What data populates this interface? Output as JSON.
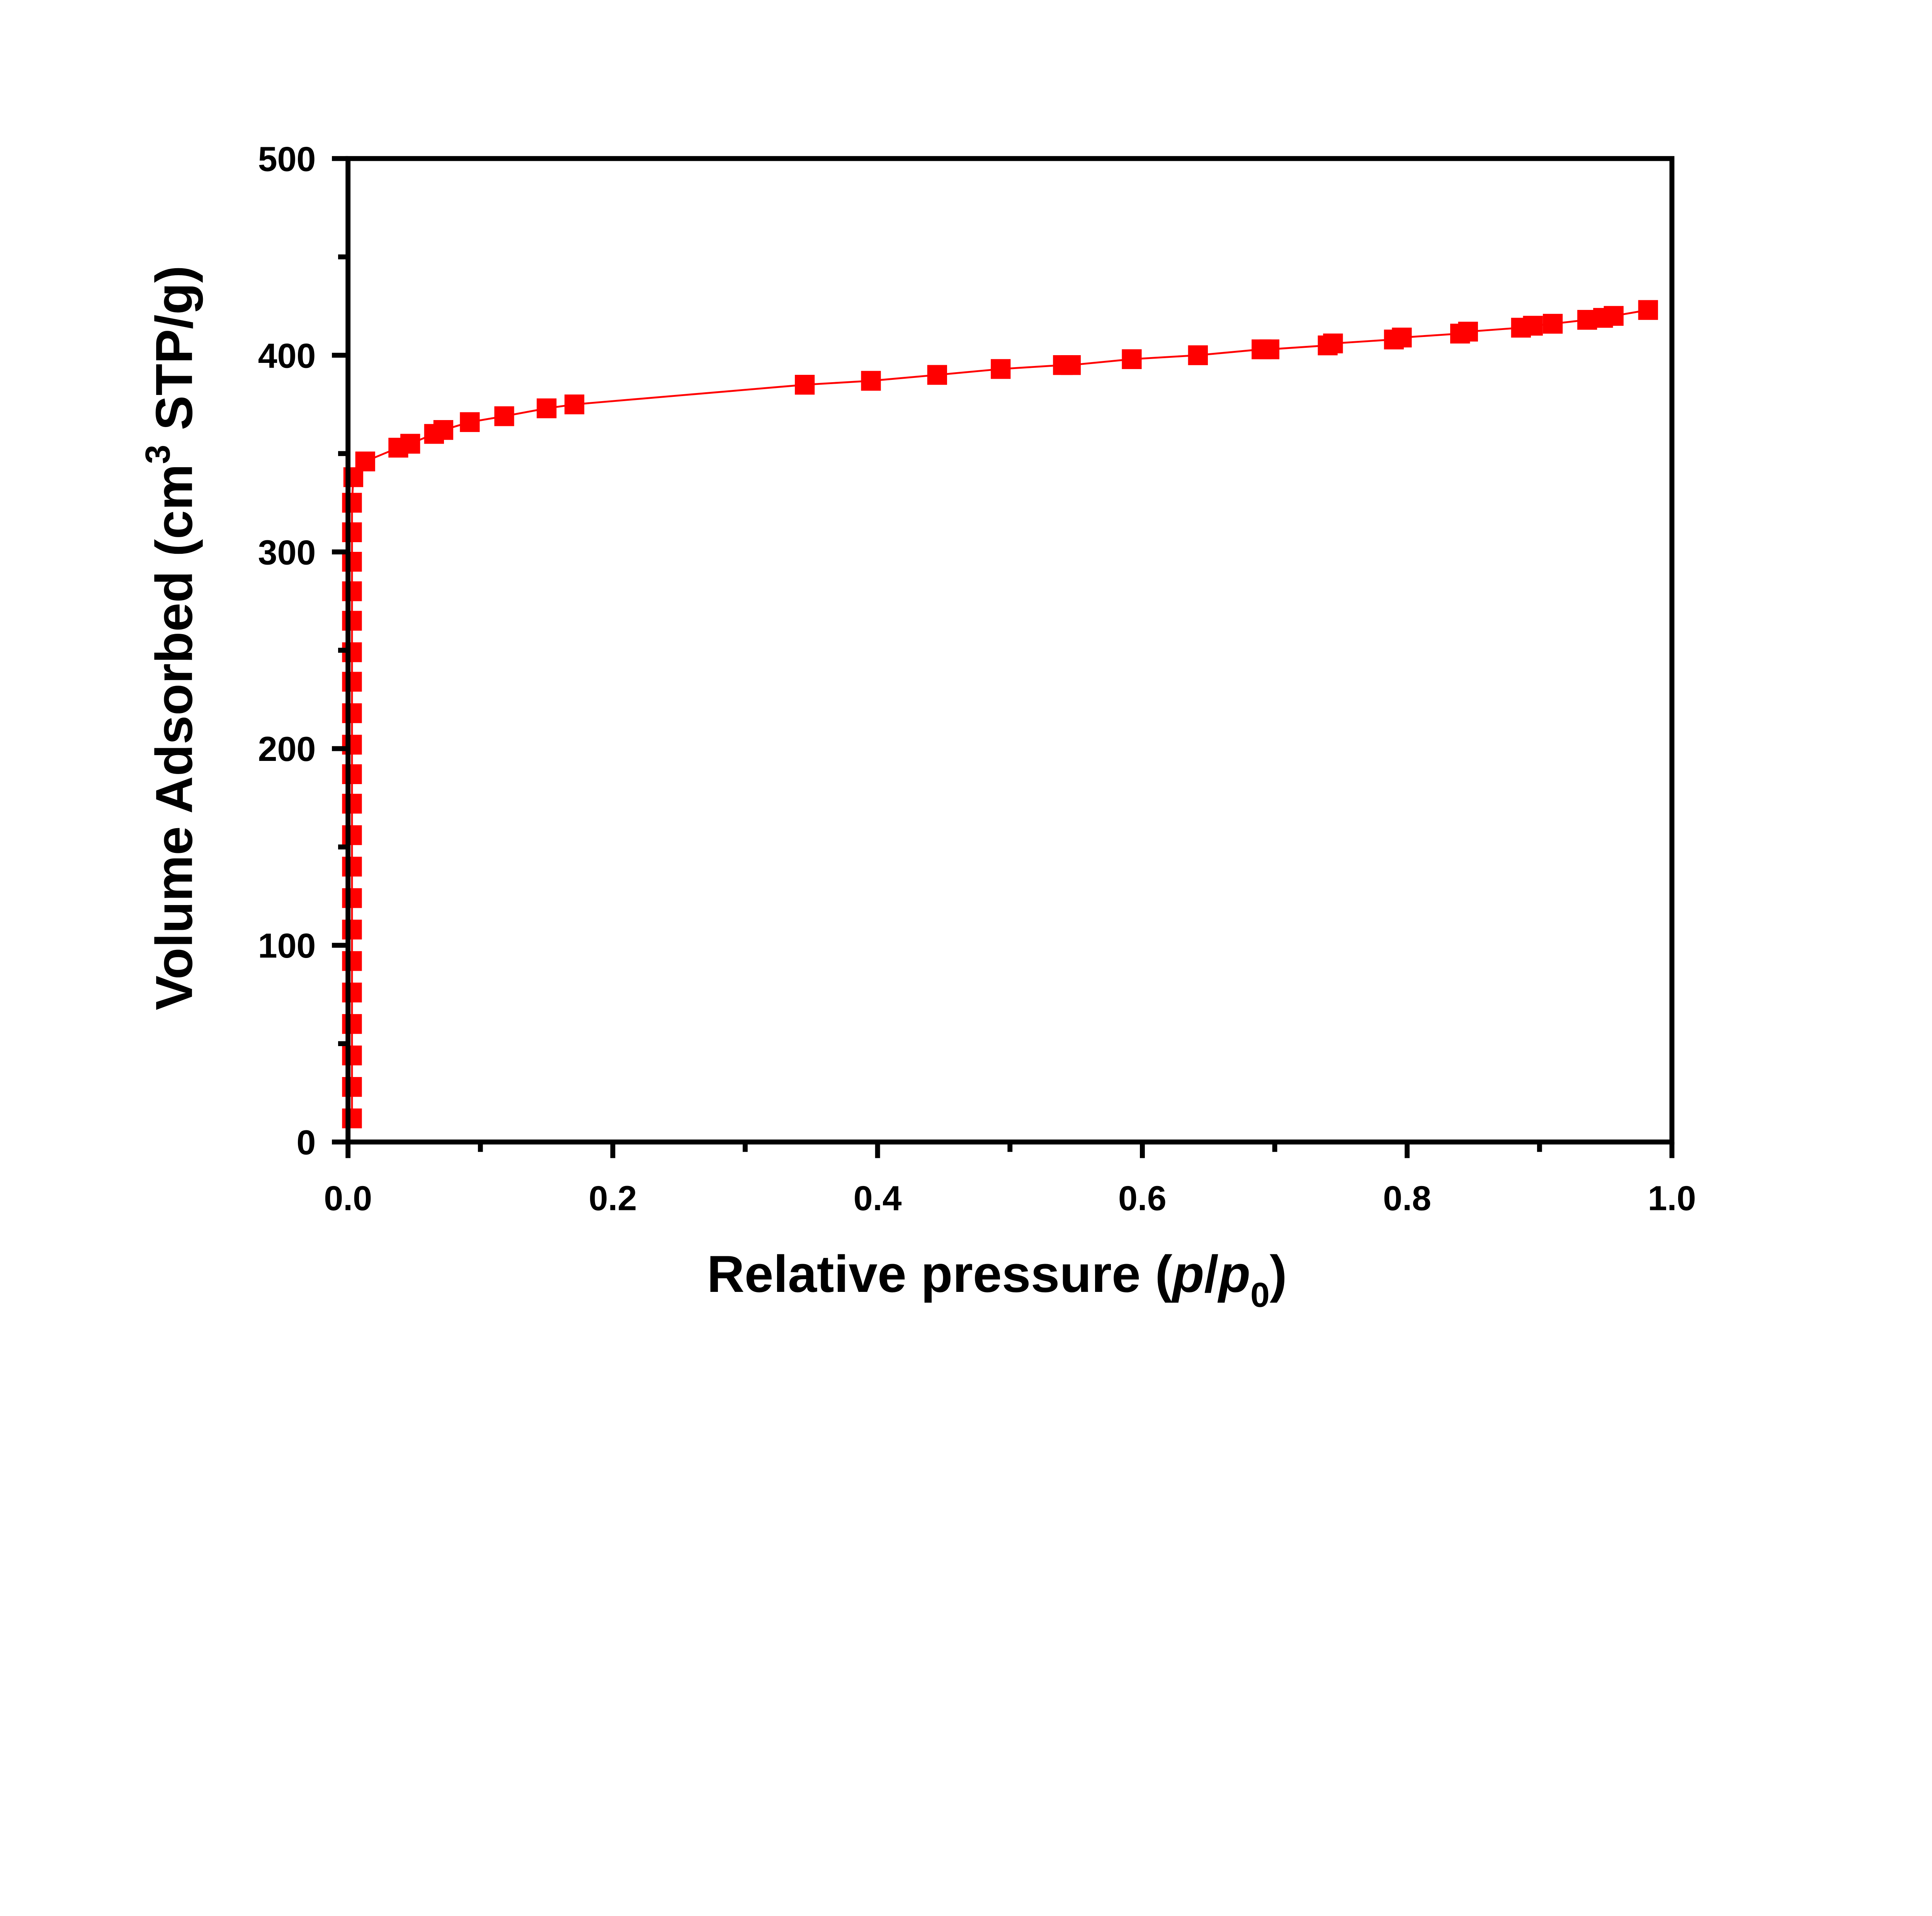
{
  "chart_data": {
    "type": "scatter",
    "title": "",
    "xlabel": "Relative pressure (p/p0)",
    "xlabel_parts": {
      "prefix": "Relative pressure (",
      "p": "p",
      "slash": "/",
      "p0": "p",
      "sub": "0",
      "suffix": ")"
    },
    "ylabel": "Volume Adsorbed (cm3 STP/g)",
    "ylabel_parts": {
      "prefix": "Volume Adsorbed (cm",
      "sup": "3",
      "suffix": " STP/g)"
    },
    "xlim": [
      0,
      1.0
    ],
    "ylim": [
      0,
      500
    ],
    "xticks": [
      "0.0",
      "0.2",
      "0.4",
      "0.6",
      "0.8",
      "1.0"
    ],
    "yticks": [
      "0",
      "100",
      "200",
      "300",
      "400",
      "500"
    ],
    "grid": false,
    "marker": "square",
    "line": "connected",
    "color": "#ff0000",
    "series": [
      {
        "x": [
          0.003,
          0.003,
          0.003,
          0.003,
          0.003,
          0.003,
          0.003,
          0.003,
          0.003,
          0.003,
          0.003,
          0.003,
          0.003,
          0.003,
          0.003,
          0.003,
          0.003,
          0.003,
          0.003,
          0.003,
          0.003,
          0.004,
          0.013,
          0.038,
          0.047,
          0.065,
          0.072,
          0.092,
          0.118,
          0.15,
          0.171,
          0.345,
          0.395,
          0.445,
          0.493,
          0.54,
          0.546,
          0.592,
          0.642,
          0.69,
          0.696,
          0.74,
          0.744,
          0.79,
          0.796,
          0.84,
          0.846,
          0.886,
          0.895,
          0.91,
          0.936,
          0.948,
          0.956,
          0.982
        ],
        "y": [
          12,
          28,
          44,
          60,
          76,
          92,
          108,
          124,
          140,
          156,
          172,
          187,
          202,
          218,
          234,
          249,
          265,
          280,
          295,
          310,
          325,
          338,
          346,
          353,
          355,
          360,
          362,
          366,
          369,
          373,
          375,
          385,
          387,
          390,
          393,
          395,
          395,
          398,
          400,
          403,
          403,
          405,
          406,
          408,
          409,
          411,
          412,
          414,
          415,
          416,
          418,
          419,
          420,
          423
        ]
      }
    ]
  }
}
